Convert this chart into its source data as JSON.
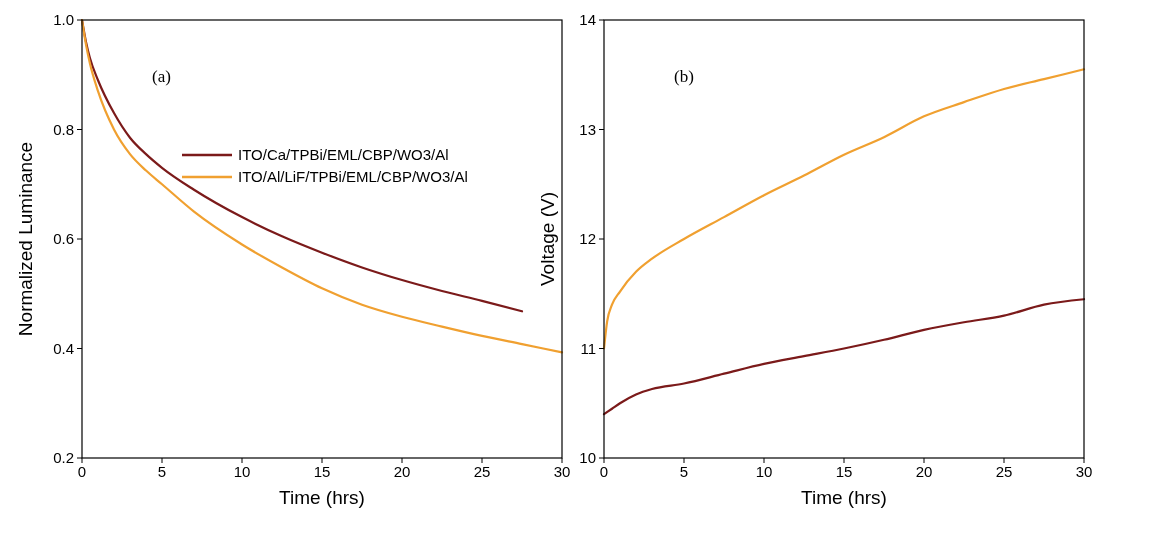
{
  "chart_data": [
    {
      "type": "line",
      "xlabel": "Time (hrs)",
      "ylabel": "Normalized Luminance",
      "annotations": [
        "(a)"
      ],
      "xlim": [
        0,
        30
      ],
      "ylim": [
        0.2,
        1.0
      ],
      "xticks": [
        0,
        5,
        10,
        15,
        20,
        25,
        30
      ],
      "yticks": [
        0.2,
        0.4,
        0.6,
        0.8,
        {
          "value": 1.0,
          "label": "1.0"
        }
      ],
      "legend": "right",
      "grid": false,
      "marker": "none",
      "line_style": "solid",
      "series": [
        {
          "name": "ITO/Ca/TPBi/EML/CBP/WO3/Al",
          "color": "#7b1a1a",
          "x": [
            0,
            0.25,
            0.5,
            1,
            2,
            3,
            4,
            5,
            7,
            10,
            12.5,
            15,
            17.5,
            20,
            22.5,
            25,
            27.5
          ],
          "values": [
            1.0,
            0.96,
            0.93,
            0.89,
            0.83,
            0.785,
            0.755,
            0.73,
            0.69,
            0.64,
            0.605,
            0.575,
            0.548,
            0.525,
            0.505,
            0.487,
            0.468
          ]
        },
        {
          "name": "ITO/Al/LiF/TPBi/EML/CBP/WO3/Al",
          "color": "#f0a030",
          "x": [
            0,
            0.25,
            0.5,
            1,
            2,
            3,
            4,
            5,
            7,
            10,
            12.5,
            15,
            17.5,
            20,
            22.5,
            25,
            27.5,
            30
          ],
          "values": [
            1.0,
            0.955,
            0.92,
            0.87,
            0.8,
            0.755,
            0.725,
            0.7,
            0.65,
            0.59,
            0.548,
            0.51,
            0.48,
            0.458,
            0.44,
            0.423,
            0.408,
            0.393
          ]
        }
      ]
    },
    {
      "type": "line",
      "xlabel": "Time (hrs)",
      "ylabel": "Voltage (V)",
      "annotations": [
        "(b)"
      ],
      "xlim": [
        0,
        30
      ],
      "ylim": [
        10,
        14
      ],
      "xticks": [
        0,
        5,
        10,
        15,
        20,
        25,
        30
      ],
      "yticks": [
        10,
        11,
        12,
        13,
        14
      ],
      "grid": false,
      "marker": "none",
      "line_style": "solid",
      "series": [
        {
          "color": "#7b1a1a",
          "x": [
            0,
            0.5,
            1,
            2,
            3,
            5,
            7.5,
            10,
            12.5,
            15,
            17.5,
            20,
            22.5,
            25,
            27.5,
            30
          ],
          "values": [
            10.4,
            10.45,
            10.5,
            10.58,
            10.63,
            10.68,
            10.77,
            10.86,
            10.93,
            11.0,
            11.08,
            11.17,
            11.24,
            11.3,
            11.4,
            11.45
          ]
        },
        {
          "color": "#f0a030",
          "x": [
            0,
            0.2,
            0.5,
            1,
            2,
            3,
            5,
            7.5,
            10,
            12.5,
            15,
            17.5,
            20,
            22.5,
            25,
            27.5,
            30
          ],
          "values": [
            11.0,
            11.25,
            11.4,
            11.52,
            11.7,
            11.82,
            12.0,
            12.2,
            12.4,
            12.58,
            12.77,
            12.93,
            13.12,
            13.25,
            13.37,
            13.46,
            13.55
          ]
        }
      ]
    }
  ]
}
